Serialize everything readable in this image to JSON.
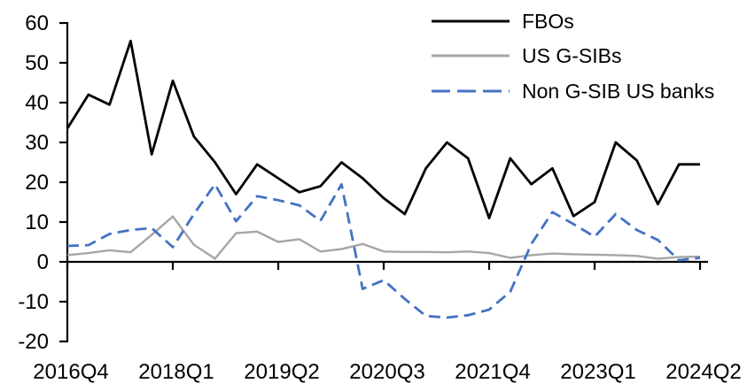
{
  "chart_data": {
    "type": "line",
    "title": "",
    "xlabel": "",
    "ylabel": "",
    "ylim": [
      -20,
      60
    ],
    "y_tick_labels": [
      "60",
      "50",
      "40",
      "30",
      "20",
      "10",
      "0",
      "-10",
      "-20"
    ],
    "y_ticks": [
      60,
      50,
      40,
      30,
      20,
      10,
      0,
      -10,
      -20
    ],
    "x_tick_labels": [
      "2016Q4",
      "2018Q1",
      "2019Q2",
      "2020Q3",
      "2021Q4",
      "2023Q1",
      "2024Q2"
    ],
    "x_tick_indices": [
      0,
      5,
      10,
      15,
      20,
      25,
      30
    ],
    "grid": false,
    "legend_position": "top-right",
    "quarters": [
      "2016Q4",
      "2017Q1",
      "2017Q2",
      "2017Q3",
      "2017Q4",
      "2018Q1",
      "2018Q2",
      "2018Q3",
      "2018Q4",
      "2019Q1",
      "2019Q2",
      "2019Q3",
      "2019Q4",
      "2020Q1",
      "2020Q2",
      "2020Q3",
      "2020Q4",
      "2021Q1",
      "2021Q2",
      "2021Q3",
      "2021Q4",
      "2022Q1",
      "2022Q2",
      "2022Q3",
      "2022Q4",
      "2023Q1",
      "2023Q2",
      "2023Q3",
      "2023Q4",
      "2024Q1",
      "2024Q2"
    ],
    "series": [
      {
        "name": "FBOs",
        "color": "#000000",
        "style": "solid",
        "values": [
          33.5,
          42,
          39.5,
          55.5,
          27,
          45.5,
          31.5,
          25,
          17,
          24.5,
          21,
          17.5,
          19,
          25,
          21,
          16,
          12,
          23.5,
          30,
          26,
          11,
          26,
          19.5,
          23.5,
          11.5,
          15,
          30,
          25.5,
          14.5,
          24.5,
          24.5
        ]
      },
      {
        "name": "US G-SIBs",
        "color": "#A6A6A6",
        "style": "solid",
        "values": [
          1.7,
          2.2,
          2.9,
          2.4,
          6.8,
          11.4,
          4.3,
          0.8,
          7.2,
          7.6,
          5,
          5.7,
          2.6,
          3.2,
          4.5,
          2.6,
          2.5,
          2.5,
          2.4,
          2.6,
          2.2,
          1,
          1.7,
          2.1,
          1.9,
          1.8,
          1.7,
          1.5,
          0.8,
          1.2,
          1.3
        ]
      },
      {
        "name": "Non G-SIB US banks",
        "color": "#4472C4",
        "style": "dashed",
        "values": [
          4,
          4.2,
          7,
          8,
          8.5,
          3.7,
          12,
          19.5,
          10.2,
          16.5,
          15.5,
          14.2,
          10.3,
          19.5,
          -6.8,
          -4.6,
          -9.3,
          -13.6,
          -14,
          -13.4,
          -12,
          -7.5,
          4.5,
          12.5,
          9.5,
          6.3,
          12,
          8,
          5.5,
          0.4,
          1
        ]
      }
    ]
  }
}
